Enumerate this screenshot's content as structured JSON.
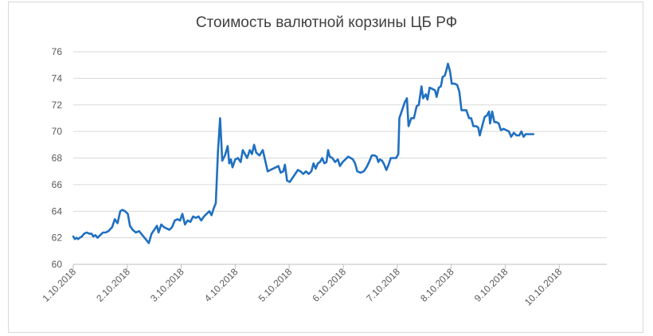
{
  "chart_data": {
    "type": "line",
    "title": "Стоимость валютной корзины ЦБ РФ",
    "xlabel": "",
    "ylabel": "",
    "ylim": [
      60,
      76
    ],
    "yticks": [
      60,
      62,
      64,
      66,
      68,
      70,
      72,
      74,
      76
    ],
    "grid": true,
    "categories": [
      "1.10.2018",
      "2.10.2018",
      "3.10.2018",
      "4.10.2018",
      "5.10.2018",
      "6.10.2018",
      "7.10.2018",
      "8.10.2018",
      "9.10.2018",
      "10.10.2018"
    ],
    "color": "#1f70c1",
    "series": [
      {
        "name": "",
        "points": [
          [
            0.0,
            62.1
          ],
          [
            0.03,
            61.9
          ],
          [
            0.06,
            62.0
          ],
          [
            0.09,
            61.9
          ],
          [
            0.12,
            62.0
          ],
          [
            0.16,
            62.1
          ],
          [
            0.2,
            62.3
          ],
          [
            0.25,
            62.4
          ],
          [
            0.3,
            62.3
          ],
          [
            0.34,
            62.3
          ],
          [
            0.37,
            62.1
          ],
          [
            0.41,
            62.2
          ],
          [
            0.45,
            62.0
          ],
          [
            0.5,
            62.2
          ],
          [
            0.55,
            62.4
          ],
          [
            0.6,
            62.4
          ],
          [
            0.65,
            62.5
          ],
          [
            0.72,
            62.8
          ],
          [
            0.77,
            63.4
          ],
          [
            0.82,
            63.1
          ],
          [
            0.87,
            64.0
          ],
          [
            0.91,
            64.1
          ],
          [
            0.96,
            64.0
          ],
          [
            1.01,
            63.8
          ],
          [
            1.05,
            62.9
          ],
          [
            1.1,
            62.6
          ],
          [
            1.16,
            62.4
          ],
          [
            1.22,
            62.5
          ],
          [
            1.28,
            62.2
          ],
          [
            1.34,
            61.9
          ],
          [
            1.4,
            61.6
          ],
          [
            1.45,
            62.3
          ],
          [
            1.5,
            62.6
          ],
          [
            1.55,
            62.9
          ],
          [
            1.58,
            62.4
          ],
          [
            1.63,
            63.0
          ],
          [
            1.68,
            62.8
          ],
          [
            1.73,
            62.7
          ],
          [
            1.78,
            62.6
          ],
          [
            1.83,
            62.8
          ],
          [
            1.88,
            63.3
          ],
          [
            1.93,
            63.4
          ],
          [
            1.98,
            63.3
          ],
          [
            2.02,
            63.8
          ],
          [
            2.07,
            63.0
          ],
          [
            2.12,
            63.3
          ],
          [
            2.17,
            63.2
          ],
          [
            2.22,
            63.6
          ],
          [
            2.27,
            63.5
          ],
          [
            2.32,
            63.6
          ],
          [
            2.37,
            63.3
          ],
          [
            2.42,
            63.6
          ],
          [
            2.47,
            63.8
          ],
          [
            2.52,
            64.0
          ],
          [
            2.56,
            63.7
          ],
          [
            2.6,
            64.2
          ],
          [
            2.64,
            64.6
          ],
          [
            2.68,
            68.5
          ],
          [
            2.72,
            71.0
          ],
          [
            2.76,
            67.8
          ],
          [
            2.81,
            68.2
          ],
          [
            2.86,
            68.9
          ],
          [
            2.89,
            67.6
          ],
          [
            2.92,
            67.9
          ],
          [
            2.95,
            67.3
          ],
          [
            3.0,
            67.9
          ],
          [
            3.05,
            68.0
          ],
          [
            3.1,
            67.7
          ],
          [
            3.14,
            68.6
          ],
          [
            3.18,
            68.3
          ],
          [
            3.22,
            68.0
          ],
          [
            3.27,
            68.6
          ],
          [
            3.31,
            68.3
          ],
          [
            3.35,
            69.0
          ],
          [
            3.39,
            68.4
          ],
          [
            3.45,
            68.2
          ],
          [
            3.51,
            68.6
          ],
          [
            3.55,
            67.9
          ],
          [
            3.6,
            67.0
          ],
          [
            3.65,
            67.1
          ],
          [
            3.7,
            67.2
          ],
          [
            3.75,
            67.3
          ],
          [
            3.8,
            67.4
          ],
          [
            3.84,
            66.9
          ],
          [
            3.89,
            67.0
          ],
          [
            3.92,
            67.5
          ],
          [
            3.96,
            66.3
          ],
          [
            4.01,
            66.2
          ],
          [
            4.06,
            66.5
          ],
          [
            4.11,
            66.8
          ],
          [
            4.16,
            67.1
          ],
          [
            4.21,
            67.0
          ],
          [
            4.26,
            66.8
          ],
          [
            4.31,
            67.0
          ],
          [
            4.36,
            66.8
          ],
          [
            4.41,
            67.0
          ],
          [
            4.45,
            67.6
          ],
          [
            4.49,
            67.2
          ],
          [
            4.53,
            67.6
          ],
          [
            4.57,
            67.7
          ],
          [
            4.61,
            68.0
          ],
          [
            4.65,
            67.6
          ],
          [
            4.69,
            67.7
          ],
          [
            4.72,
            68.6
          ],
          [
            4.75,
            68.1
          ],
          [
            4.8,
            68.0
          ],
          [
            4.85,
            67.7
          ],
          [
            4.9,
            67.9
          ],
          [
            4.94,
            67.4
          ],
          [
            4.99,
            67.7
          ],
          [
            5.04,
            67.9
          ],
          [
            5.09,
            68.1
          ],
          [
            5.14,
            68.0
          ],
          [
            5.18,
            67.9
          ],
          [
            5.22,
            67.6
          ],
          [
            5.26,
            67.0
          ],
          [
            5.32,
            66.9
          ],
          [
            5.38,
            67.0
          ],
          [
            5.43,
            67.3
          ],
          [
            5.48,
            67.7
          ],
          [
            5.53,
            68.2
          ],
          [
            5.58,
            68.2
          ],
          [
            5.62,
            68.1
          ],
          [
            5.65,
            67.7
          ],
          [
            5.68,
            67.9
          ],
          [
            5.72,
            67.8
          ],
          [
            5.76,
            67.5
          ],
          [
            5.8,
            67.1
          ],
          [
            5.84,
            67.5
          ],
          [
            5.88,
            68.0
          ],
          [
            5.93,
            68.0
          ],
          [
            5.98,
            68.0
          ],
          [
            6.02,
            68.3
          ],
          [
            6.04,
            71.0
          ],
          [
            6.09,
            71.6
          ],
          [
            6.14,
            72.2
          ],
          [
            6.18,
            72.5
          ],
          [
            6.21,
            70.4
          ],
          [
            6.26,
            71.0
          ],
          [
            6.31,
            71.0
          ],
          [
            6.36,
            71.9
          ],
          [
            6.4,
            72.0
          ],
          [
            6.45,
            73.4
          ],
          [
            6.48,
            72.5
          ],
          [
            6.53,
            72.8
          ],
          [
            6.56,
            72.4
          ],
          [
            6.6,
            73.3
          ],
          [
            6.65,
            73.2
          ],
          [
            6.7,
            73.1
          ],
          [
            6.73,
            72.6
          ],
          [
            6.77,
            73.3
          ],
          [
            6.81,
            73.4
          ],
          [
            6.84,
            74.1
          ],
          [
            6.88,
            74.2
          ],
          [
            6.91,
            74.6
          ],
          [
            6.94,
            75.1
          ],
          [
            6.98,
            74.5
          ],
          [
            7.01,
            73.6
          ],
          [
            7.06,
            73.6
          ],
          [
            7.11,
            73.5
          ],
          [
            7.15,
            73.0
          ],
          [
            7.19,
            71.6
          ],
          [
            7.24,
            71.6
          ],
          [
            7.28,
            71.6
          ],
          [
            7.33,
            71.0
          ],
          [
            7.37,
            71.0
          ],
          [
            7.41,
            70.4
          ],
          [
            7.46,
            70.4
          ],
          [
            7.5,
            70.3
          ],
          [
            7.53,
            69.7
          ],
          [
            7.58,
            70.5
          ],
          [
            7.62,
            71.1
          ],
          [
            7.66,
            71.2
          ],
          [
            7.7,
            71.5
          ],
          [
            7.72,
            70.6
          ],
          [
            7.76,
            71.5
          ],
          [
            7.8,
            70.7
          ],
          [
            7.84,
            70.7
          ],
          [
            7.88,
            70.6
          ],
          [
            7.92,
            70.1
          ],
          [
            7.97,
            70.2
          ],
          [
            8.02,
            70.1
          ],
          [
            8.07,
            70.0
          ],
          [
            8.11,
            69.6
          ],
          [
            8.16,
            69.9
          ],
          [
            8.21,
            69.7
          ],
          [
            8.26,
            69.7
          ],
          [
            8.3,
            70.0
          ],
          [
            8.34,
            69.6
          ],
          [
            8.38,
            69.8
          ],
          [
            8.43,
            69.8
          ],
          [
            8.48,
            69.8
          ],
          [
            8.52,
            69.8
          ]
        ]
      }
    ]
  }
}
